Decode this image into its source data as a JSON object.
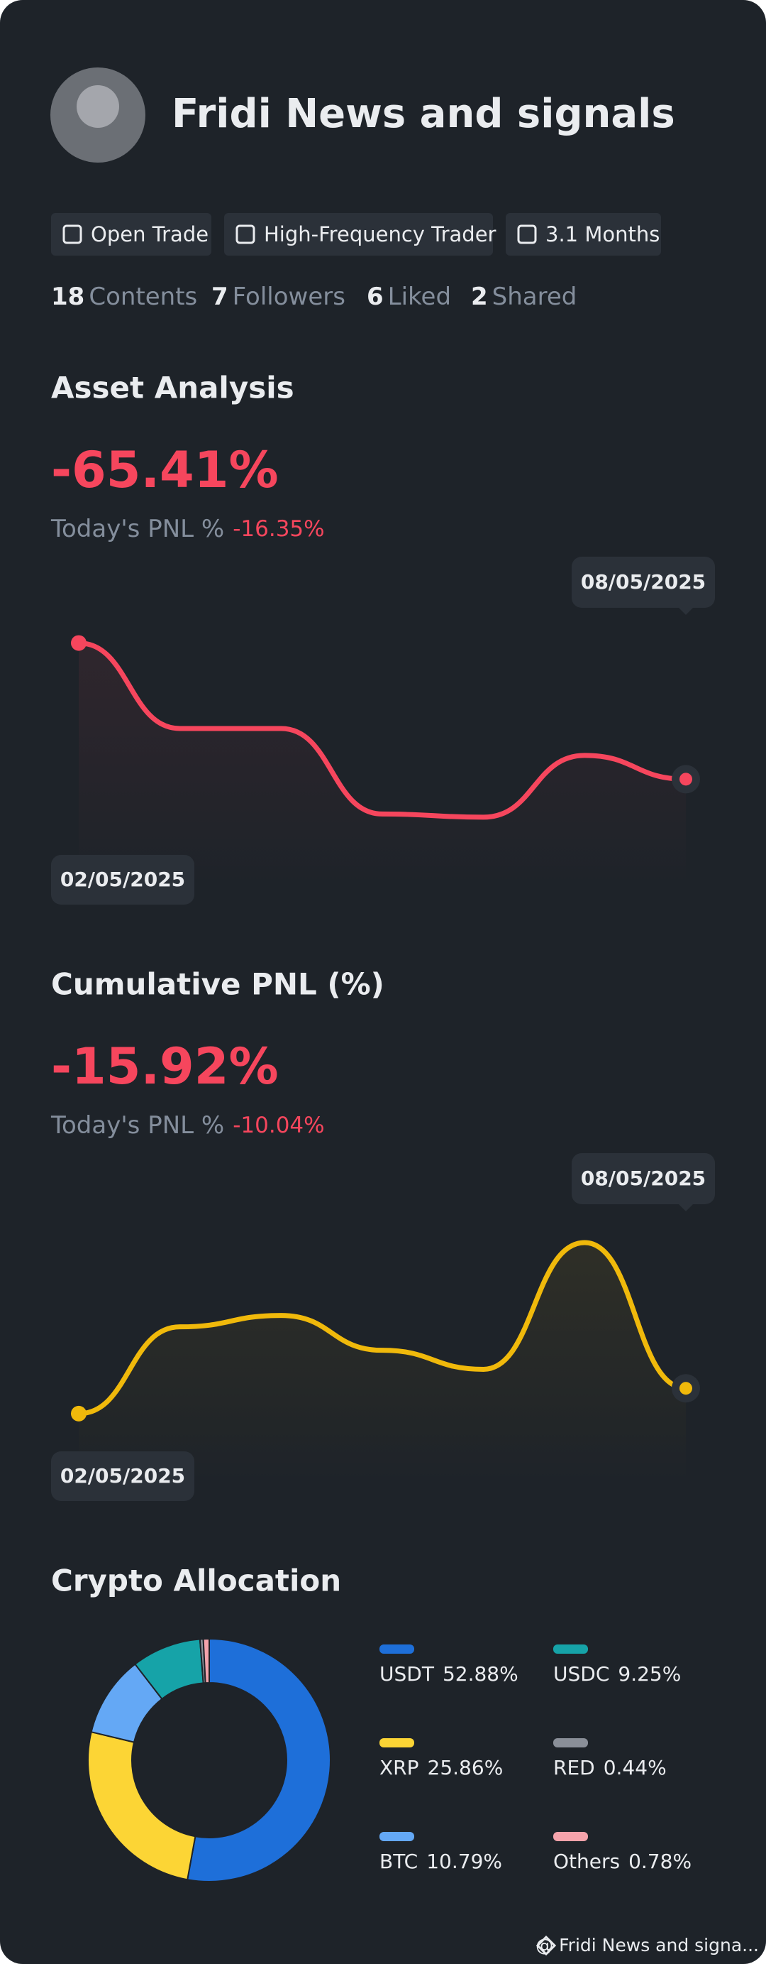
{
  "profile": {
    "name": "Fridi News and signals",
    "tags": [
      "Open Trade",
      "High-Frequency Trader",
      "3.1 Months"
    ],
    "stats": [
      {
        "count": 18,
        "label": "Contents"
      },
      {
        "count": 7,
        "label": "Followers"
      },
      {
        "count": 6,
        "label": "Liked"
      },
      {
        "count": 2,
        "label": "Shared"
      }
    ]
  },
  "chart_data": [
    {
      "type": "line",
      "title": "Asset Analysis",
      "headline": "-65.41%",
      "today_label": "Today's PNL %",
      "today_value": "-16.35%",
      "categories": [
        "02/05/2025",
        null,
        null,
        null,
        null,
        null,
        "08/05/2025"
      ],
      "series": [
        {
          "color": "#f6465d",
          "values": [
            77,
            50,
            50,
            23,
            22,
            41.5,
            34
          ]
        }
      ],
      "ylim": [
        0,
        100
      ]
    },
    {
      "type": "line",
      "title": "Cumulative PNL (%)",
      "headline": "-15.92%",
      "today_label": "Today's PNL %",
      "today_value": "-10.04%",
      "categories": [
        "02/05/2025",
        null,
        null,
        null,
        null,
        null,
        "08/05/2025"
      ],
      "series": [
        {
          "color": "#f0b90b",
          "values": [
            22,
            49.4,
            53,
            42,
            36,
            76,
            30
          ]
        }
      ],
      "ylim": [
        0,
        100
      ]
    },
    {
      "type": "pie",
      "title": "Crypto Allocation",
      "categories": [
        "USDT",
        "XRP",
        "BTC",
        "USDC",
        "RED",
        "Others"
      ],
      "values": [
        52.88,
        25.86,
        10.79,
        9.25,
        0.44,
        0.78
      ],
      "value_labels": [
        "52.88%",
        "25.86%",
        "10.79%",
        "9.25%",
        "0.44%",
        "0.78%"
      ],
      "colors": [
        "#1e6fd9",
        "#fcd535",
        "#64a8f5",
        "#16a3a8",
        "#8a8f98",
        "#f5a3ab"
      ]
    }
  ],
  "footer": "@ Fridi News and signa..."
}
